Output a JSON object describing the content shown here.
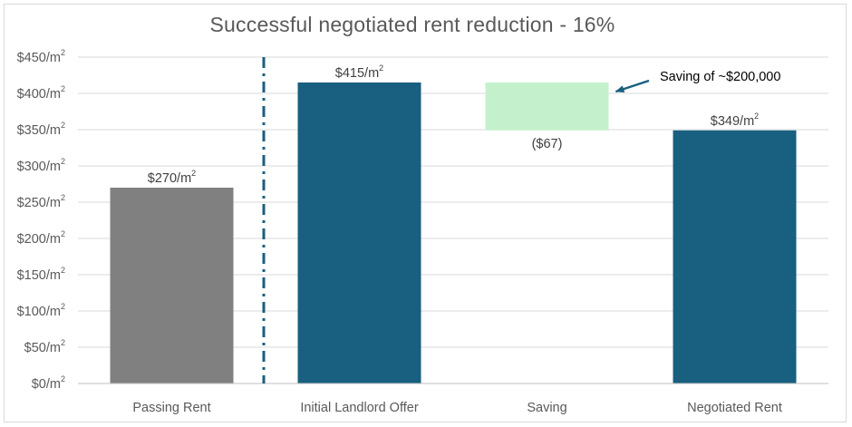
{
  "chart_data": {
    "type": "bar",
    "title": "Successful negotiated rent reduction - 16%",
    "categories": [
      "Passing Rent",
      "Initial Landlord Offer",
      "Saving",
      "Negotiated Rent"
    ],
    "bars": [
      {
        "category": "Passing Rent",
        "base": 0,
        "top": 270,
        "label": "$270/m",
        "label_sup": "2",
        "color": "#808080"
      },
      {
        "category": "Initial Landlord Offer",
        "base": 0,
        "top": 415,
        "label": "$415/m",
        "label_sup": "2",
        "color": "#185f80"
      },
      {
        "category": "Saving",
        "base": 349,
        "top": 415,
        "label": "($67)",
        "label_sup": "",
        "color": "#c4f1cb"
      },
      {
        "category": "Negotiated Rent",
        "base": 0,
        "top": 349,
        "label": "$349/m",
        "label_sup": "2",
        "color": "#185f80"
      }
    ],
    "ylim": [
      0,
      450
    ],
    "yticks": [
      {
        "value": 0,
        "label": "$0/m",
        "sup": "2"
      },
      {
        "value": 50,
        "label": "$50/m",
        "sup": "2"
      },
      {
        "value": 100,
        "label": "$100/m",
        "sup": "2"
      },
      {
        "value": 150,
        "label": "$150/m",
        "sup": "2"
      },
      {
        "value": 200,
        "label": "$200/m",
        "sup": "2"
      },
      {
        "value": 250,
        "label": "$250/m",
        "sup": "2"
      },
      {
        "value": 300,
        "label": "$300/m",
        "sup": "2"
      },
      {
        "value": 350,
        "label": "$350/m",
        "sup": "2"
      },
      {
        "value": 400,
        "label": "$400/m",
        "sup": "2"
      },
      {
        "value": 450,
        "label": "$450/m",
        "sup": "2"
      }
    ],
    "grid": true,
    "divider": {
      "between": [
        "Passing Rent",
        "Initial Landlord Offer"
      ],
      "style": "dash-dot",
      "color": "#185f80"
    },
    "annotation": {
      "text": "Saving of ~$200,000",
      "target": "Saving",
      "arrow_color": "#185f80"
    },
    "xlabel": "",
    "ylabel": ""
  }
}
